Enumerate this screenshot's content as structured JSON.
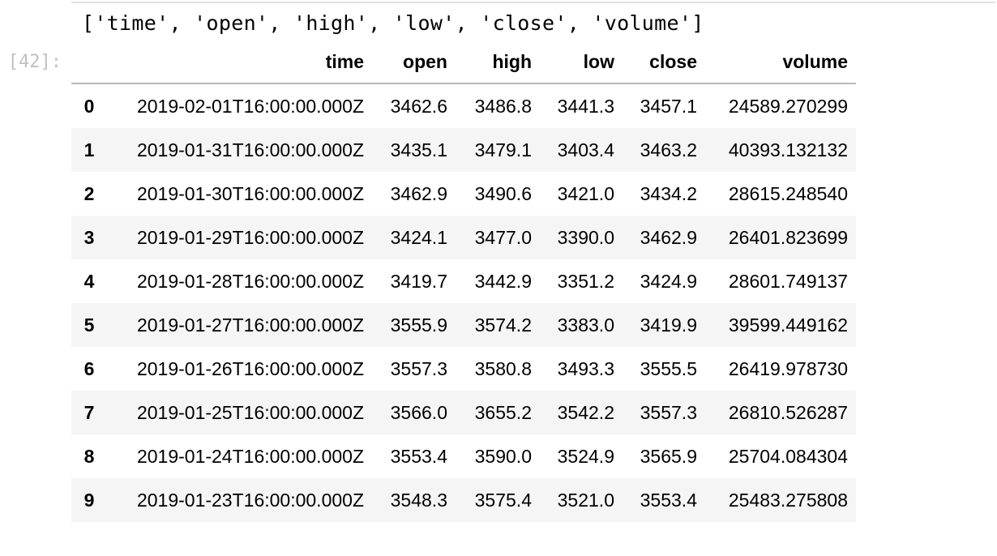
{
  "stdout": "['time', 'open', 'high', 'low', 'close', 'volume']",
  "prompt": "[42]:",
  "table": {
    "columns": [
      "",
      "time",
      "open",
      "high",
      "low",
      "close",
      "volume"
    ],
    "rows": [
      {
        "index": "0",
        "time": "2019-02-01T16:00:00.000Z",
        "open": "3462.6",
        "high": "3486.8",
        "low": "3441.3",
        "close": "3457.1",
        "volume": "24589.270299"
      },
      {
        "index": "1",
        "time": "2019-01-31T16:00:00.000Z",
        "open": "3435.1",
        "high": "3479.1",
        "low": "3403.4",
        "close": "3463.2",
        "volume": "40393.132132"
      },
      {
        "index": "2",
        "time": "2019-01-30T16:00:00.000Z",
        "open": "3462.9",
        "high": "3490.6",
        "low": "3421.0",
        "close": "3434.2",
        "volume": "28615.248540"
      },
      {
        "index": "3",
        "time": "2019-01-29T16:00:00.000Z",
        "open": "3424.1",
        "high": "3477.0",
        "low": "3390.0",
        "close": "3462.9",
        "volume": "26401.823699"
      },
      {
        "index": "4",
        "time": "2019-01-28T16:00:00.000Z",
        "open": "3419.7",
        "high": "3442.9",
        "low": "3351.2",
        "close": "3424.9",
        "volume": "28601.749137"
      },
      {
        "index": "5",
        "time": "2019-01-27T16:00:00.000Z",
        "open": "3555.9",
        "high": "3574.2",
        "low": "3383.0",
        "close": "3419.9",
        "volume": "39599.449162"
      },
      {
        "index": "6",
        "time": "2019-01-26T16:00:00.000Z",
        "open": "3557.3",
        "high": "3580.8",
        "low": "3493.3",
        "close": "3555.5",
        "volume": "26419.978730"
      },
      {
        "index": "7",
        "time": "2019-01-25T16:00:00.000Z",
        "open": "3566.0",
        "high": "3655.2",
        "low": "3542.2",
        "close": "3557.3",
        "volume": "26810.526287"
      },
      {
        "index": "8",
        "time": "2019-01-24T16:00:00.000Z",
        "open": "3553.4",
        "high": "3590.0",
        "low": "3524.9",
        "close": "3565.9",
        "volume": "25704.084304"
      },
      {
        "index": "9",
        "time": "2019-01-23T16:00:00.000Z",
        "open": "3548.3",
        "high": "3575.4",
        "low": "3521.0",
        "close": "3553.4",
        "volume": "25483.275808"
      }
    ]
  }
}
